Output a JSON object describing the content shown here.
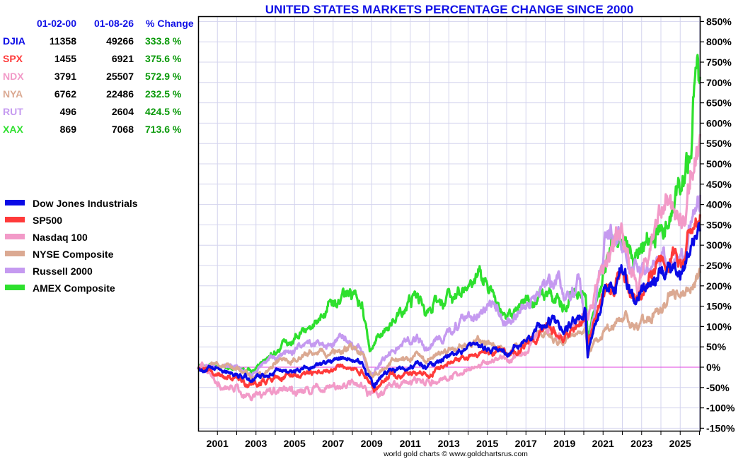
{
  "chart_data": {
    "type": "line",
    "title": "UNITED STATES MARKETS PERCENTAGE CHANGE SINCE 2000",
    "xlabel": "",
    "ylabel": "",
    "xlim": [
      2000.0,
      2026.03
    ],
    "ylim": [
      -150,
      850
    ],
    "grid": true,
    "y_ticks": [
      850,
      800,
      750,
      700,
      650,
      600,
      550,
      500,
      450,
      400,
      350,
      300,
      250,
      200,
      150,
      100,
      50,
      0,
      -50,
      -100,
      -150
    ],
    "y_tick_labels": [
      "850%",
      "800%",
      "750%",
      "700%",
      "650%",
      "600%",
      "550%",
      "500%",
      "450%",
      "400%",
      "350%",
      "300%",
      "250%",
      "200%",
      "150%",
      "100%",
      "50%",
      "0%",
      "-50%",
      "-100%",
      "-150%"
    ],
    "x_ticks": [
      2001,
      2003,
      2005,
      2007,
      2009,
      2011,
      2013,
      2015,
      2017,
      2019,
      2021,
      2023,
      2025
    ],
    "x_tick_labels": [
      "2001",
      "2003",
      "2005",
      "2007",
      "2009",
      "2011",
      "2013",
      "2015",
      "2017",
      "2019",
      "2021",
      "2023",
      "2025"
    ],
    "zero_line_color": "#e040e0",
    "legend_position": "left",
    "series": [
      {
        "name": "Dow Jones Industrials",
        "symbol": "DJIA",
        "color": "#0a0ae6",
        "x": [
          2000.0,
          2000.3,
          2001.0,
          2001.7,
          2002.8,
          2003.3,
          2004.0,
          2005.0,
          2006.0,
          2007.0,
          2007.8,
          2008.5,
          2009.1,
          2010.0,
          2010.5,
          2011.5,
          2011.8,
          2013.0,
          2014.5,
          2015.6,
          2016.1,
          2017.0,
          2018.0,
          2018.95,
          2019.5,
          2020.1,
          2020.2,
          2020.6,
          2021.2,
          2021.95,
          2022.7,
          2023.0,
          2023.5,
          2024.0,
          2024.5,
          2025.2,
          2025.5,
          2026.03
        ],
        "values": [
          0,
          -5,
          -5,
          -10,
          -30,
          -25,
          -10,
          -10,
          0,
          15,
          25,
          10,
          -45,
          -5,
          -5,
          10,
          0,
          30,
          50,
          40,
          35,
          60,
          110,
          90,
          115,
          150,
          30,
          110,
          190,
          230,
          150,
          190,
          200,
          230,
          250,
          230,
          280,
          334
        ]
      },
      {
        "name": "SP500",
        "symbol": "SPX",
        "color": "#ff3a3a",
        "x": [
          2000.0,
          2000.3,
          2001.0,
          2001.7,
          2002.8,
          2003.3,
          2004.0,
          2005.0,
          2006.0,
          2007.0,
          2007.8,
          2008.5,
          2009.1,
          2010.0,
          2010.5,
          2011.5,
          2011.8,
          2013.0,
          2014.5,
          2015.6,
          2016.1,
          2017.0,
          2018.0,
          2018.95,
          2019.5,
          2020.1,
          2020.2,
          2020.6,
          2021.2,
          2021.95,
          2022.7,
          2023.0,
          2023.5,
          2024.0,
          2024.5,
          2025.2,
          2025.5,
          2026.03
        ],
        "values": [
          0,
          0,
          -15,
          -25,
          -45,
          -40,
          -25,
          -20,
          -15,
          -5,
          5,
          -10,
          -55,
          -20,
          -20,
          -10,
          -20,
          10,
          35,
          40,
          30,
          55,
          95,
          75,
          100,
          130,
          55,
          115,
          175,
          225,
          155,
          180,
          220,
          260,
          290,
          260,
          320,
          376
        ]
      },
      {
        "name": "Nasdaq 100",
        "symbol": "NDX",
        "color": "#f29ac8",
        "x": [
          2000.0,
          2000.2,
          2000.5,
          2001.0,
          2001.7,
          2002.8,
          2003.3,
          2004.0,
          2005.0,
          2006.0,
          2007.0,
          2007.8,
          2008.5,
          2009.0,
          2010.0,
          2011.5,
          2011.8,
          2013.0,
          2014.5,
          2015.6,
          2016.1,
          2017.0,
          2018.0,
          2018.95,
          2019.5,
          2020.1,
          2020.2,
          2020.6,
          2021.1,
          2021.95,
          2022.8,
          2023.0,
          2023.5,
          2024.0,
          2024.5,
          2025.2,
          2025.5,
          2025.8,
          2026.03
        ],
        "values": [
          0,
          15,
          -10,
          -40,
          -50,
          -75,
          -70,
          -60,
          -60,
          -55,
          -50,
          -40,
          -50,
          -70,
          -45,
          -35,
          -40,
          -20,
          5,
          25,
          15,
          40,
          100,
          75,
          110,
          145,
          110,
          190,
          250,
          330,
          200,
          240,
          330,
          390,
          450,
          350,
          470,
          560,
          573
        ]
      },
      {
        "name": "NYSE Composite",
        "symbol": "NYA",
        "color": "#dba992",
        "x": [
          2000.0,
          2001.0,
          2002.0,
          2002.8,
          2003.3,
          2004.0,
          2005.0,
          2006.0,
          2007.0,
          2007.8,
          2008.5,
          2009.0,
          2010.0,
          2011.3,
          2011.8,
          2013.0,
          2014.5,
          2015.5,
          2016.1,
          2017.0,
          2018.0,
          2018.95,
          2019.5,
          2020.1,
          2020.2,
          2020.6,
          2021.0,
          2022.0,
          2022.8,
          2023.5,
          2024.0,
          2024.5,
          2025.0,
          2025.3,
          2025.6,
          2026.03
        ],
        "values": [
          0,
          5,
          -5,
          -25,
          -20,
          15,
          20,
          35,
          40,
          50,
          35,
          -25,
          10,
          30,
          15,
          40,
          65,
          55,
          40,
          60,
          80,
          60,
          75,
          95,
          30,
          70,
          90,
          130,
          100,
          120,
          150,
          190,
          180,
          160,
          200,
          232
        ]
      },
      {
        "name": "Russell 2000",
        "symbol": "RUT",
        "color": "#c59af0",
        "x": [
          2000.0,
          2001.0,
          2002.0,
          2002.7,
          2003.5,
          2004.5,
          2005.5,
          2006.5,
          2007.5,
          2008.4,
          2009.0,
          2010.0,
          2011.3,
          2011.8,
          2013.0,
          2014.0,
          2015.3,
          2016.1,
          2017.0,
          2018.7,
          2018.95,
          2019.8,
          2020.2,
          2020.6,
          2021.1,
          2021.8,
          2022.5,
          2023.0,
          2023.5,
          2024.5,
          2025.2,
          2025.6,
          2026.03
        ],
        "values": [
          0,
          5,
          0,
          -25,
          15,
          35,
          50,
          55,
          70,
          50,
          -15,
          40,
          80,
          40,
          80,
          130,
          145,
          110,
          150,
          235,
          160,
          205,
          40,
          160,
          330,
          350,
          230,
          260,
          240,
          280,
          250,
          350,
          424
        ]
      },
      {
        "name": "AMEX Composite",
        "symbol": "XAX",
        "color": "#2ee02e",
        "x": [
          2000.0,
          2001.0,
          2002.0,
          2002.8,
          2003.5,
          2004.5,
          2005.5,
          2006.5,
          2007.4,
          2007.9,
          2008.5,
          2008.9,
          2009.5,
          2010.5,
          2011.3,
          2011.8,
          2012.5,
          2013.5,
          2014.5,
          2015.2,
          2016.0,
          2017.0,
          2018.0,
          2018.9,
          2019.5,
          2020.1,
          2020.2,
          2020.6,
          2021.0,
          2021.5,
          2022.3,
          2022.8,
          2023.5,
          2024.2,
          2024.8,
          2025.3,
          2025.6,
          2025.9,
          2026.03
        ],
        "values": [
          0,
          5,
          0,
          -5,
          20,
          55,
          85,
          130,
          175,
          185,
          150,
          40,
          80,
          130,
          175,
          145,
          170,
          170,
          215,
          190,
          115,
          160,
          185,
          150,
          185,
          175,
          60,
          150,
          220,
          330,
          300,
          280,
          320,
          340,
          430,
          510,
          570,
          760,
          714
        ]
      }
    ]
  },
  "summary_table": {
    "headers": [
      "",
      "01-02-00",
      "01-08-26",
      "% Change"
    ],
    "rows": [
      {
        "symbol": "DJIA",
        "start": "11358",
        "end": "49266",
        "change": "333.8 %",
        "color": "#0a0ae6"
      },
      {
        "symbol": "SPX",
        "start": "1455",
        "end": "6921",
        "change": "375.6 %",
        "color": "#ff3a3a"
      },
      {
        "symbol": "NDX",
        "start": "3791",
        "end": "25507",
        "change": "572.9 %",
        "color": "#f29ac8"
      },
      {
        "symbol": "NYA",
        "start": "6762",
        "end": "22486",
        "change": "232.5 %",
        "color": "#dba992"
      },
      {
        "symbol": "RUT",
        "start": "496",
        "end": "2604",
        "change": "424.5 %",
        "color": "#c59af0"
      },
      {
        "symbol": "XAX",
        "start": "869",
        "end": "7068",
        "change": "713.6 %",
        "color": "#2ee02e"
      }
    ]
  },
  "legend": {
    "items": [
      {
        "label": "Dow Jones Industrials",
        "color": "#0a0ae6"
      },
      {
        "label": "SP500",
        "color": "#ff3a3a"
      },
      {
        "label": "Nasdaq 100",
        "color": "#f29ac8"
      },
      {
        "label": "NYSE Composite",
        "color": "#dba992"
      },
      {
        "label": "Russell 2000",
        "color": "#c59af0"
      },
      {
        "label": "AMEX Composite",
        "color": "#2ee02e"
      }
    ]
  },
  "footer": "world gold charts © www.goldchartsrus.com",
  "colors": {
    "title": "#1010e6",
    "grid": "#d4d4ee",
    "positive_change": "#0a9a0a",
    "zero_line": "#e040e0"
  }
}
